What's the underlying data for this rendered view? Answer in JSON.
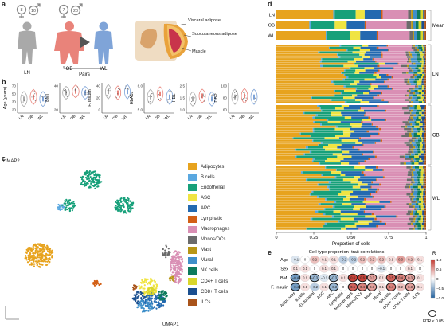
{
  "panels": {
    "a": {
      "letter": "a",
      "groups": [
        {
          "id": "LN",
          "label": "LN",
          "female": "8",
          "male": "10"
        },
        {
          "id": "OB",
          "label": "OB",
          "female": "7",
          "male": "20"
        },
        {
          "id": "WL",
          "label": "WL"
        }
      ],
      "pairs_label": "Pairs",
      "tissue_labels": [
        "Visceral adipose",
        "Subcutaneous adipose",
        "Muscle"
      ],
      "colors": {
        "LN": "#a9a9a9",
        "OB": "#e9837a",
        "WL": "#7fa4d8"
      }
    },
    "b": {
      "letter": "b",
      "plots": [
        {
          "ylabel": "Age (years)",
          "ticks": [
            "70",
            "50",
            "30",
            "20"
          ],
          "xlabels": [
            "LN",
            "OB",
            "WL"
          ]
        },
        {
          "ylabel": "BMI",
          "ticks": [
            "40",
            "20"
          ],
          "xlabels": [
            "LN",
            "OB",
            "WL"
          ]
        },
        {
          "ylabel": "F. insulin",
          "ticks": [
            "40",
            "20",
            "0"
          ],
          "xlabels": [
            "LN",
            "OB",
            "WL"
          ]
        },
        {
          "ylabel": "HbA1c",
          "ticks": [
            "6.0",
            "5.0"
          ],
          "xlabels": [
            "LN",
            "OB",
            "WL"
          ]
        },
        {
          "ylabel": "HDL",
          "ticks": [
            "2.5",
            "1.5",
            "1.0"
          ],
          "xlabels": [
            "LN",
            "OB",
            "WL"
          ]
        },
        {
          "ylabel": "DBP",
          "ticks": [
            "100",
            "80",
            "60"
          ],
          "xlabels": [
            "LN",
            "OB",
            "WL"
          ]
        }
      ]
    },
    "c": {
      "letter": "c",
      "xlabel": "UMAP1",
      "ylabel": "UMAP2",
      "legend": [
        {
          "name": "Adipocytes",
          "color": "#e7a31e"
        },
        {
          "name": "B cells",
          "color": "#5aa8e0"
        },
        {
          "name": "Endothelial",
          "color": "#17a07a"
        },
        {
          "name": "ASC",
          "color": "#f0e442"
        },
        {
          "name": "APC",
          "color": "#2369b0"
        },
        {
          "name": "Lymphatic",
          "color": "#d35f15"
        },
        {
          "name": "Macrophages",
          "color": "#d98fb4"
        },
        {
          "name": "Monos/DCs",
          "color": "#6b6b6b"
        },
        {
          "name": "Mast",
          "color": "#b89615"
        },
        {
          "name": "Mural",
          "color": "#3f8fc9"
        },
        {
          "name": "NK cells",
          "color": "#0d7a5c"
        },
        {
          "name": "CD4+ T cells",
          "color": "#d9d62b"
        },
        {
          "name": "CD8+ T cells",
          "color": "#1b4f8f"
        },
        {
          "name": "ILCs",
          "color": "#a9531a"
        }
      ]
    },
    "d": {
      "letter": "d",
      "xlabel": "Proportion of cells",
      "xticks": [
        "0",
        "0.25",
        "0.50",
        "0.75",
        "1"
      ],
      "mean_label": "Mean",
      "groups": [
        "LN",
        "OB",
        "WL"
      ]
    },
    "e": {
      "letter": "e",
      "title": "Cell type proportion–trait correlations",
      "rows": [
        "Age",
        "Sex",
        "BMI",
        "F. insulin"
      ],
      "columns": [
        "Adipocytes",
        "B cells",
        "Endothelial",
        "ASC",
        "APC",
        "Lymphatic",
        "Macrophages",
        "Monos/DCs",
        "Mast",
        "Mural",
        "NK cells",
        "CD4+ T cells",
        "CD8+ T cells",
        "ILCs"
      ],
      "values": [
        [
          -0.1,
          0,
          0.2,
          0.1,
          0.1,
          -0.2,
          -0.2,
          0.2,
          0.2,
          0.2,
          0.1,
          0.3,
          0.2,
          0.1
        ],
        [
          0.1,
          0.1,
          0,
          0.1,
          0.1,
          0,
          0,
          0,
          0,
          -0.1,
          0,
          0,
          0.1,
          0
        ],
        [
          -0.4,
          0.1,
          -0.3,
          -0.1,
          -0.3,
          0.1,
          0.6,
          0.6,
          0.3,
          0.1,
          0.5,
          0.4,
          0.3,
          0.1
        ],
        [
          -0.4,
          0.1,
          -0.2,
          0.1,
          -0.3,
          0,
          0.5,
          0.4,
          0.3,
          0.1,
          0.4,
          0.2,
          0.3,
          0.1
        ]
      ],
      "significant": [
        [
          false,
          false,
          false,
          false,
          false,
          false,
          false,
          false,
          false,
          false,
          false,
          false,
          false,
          false
        ],
        [
          false,
          false,
          false,
          false,
          false,
          false,
          false,
          false,
          false,
          false,
          false,
          false,
          false,
          false
        ],
        [
          true,
          false,
          true,
          false,
          true,
          false,
          true,
          true,
          true,
          false,
          true,
          true,
          true,
          false
        ],
        [
          true,
          false,
          false,
          false,
          true,
          false,
          true,
          true,
          true,
          false,
          true,
          false,
          true,
          false
        ]
      ],
      "legend_title": "R",
      "legend_ticks": [
        "1.0",
        "0.5",
        "0",
        "−0.5",
        "−1.0"
      ],
      "fdr_label": "FDR < 0.05"
    }
  },
  "chart_data": [
    {
      "type": "bar",
      "panel": "d",
      "stacked": true,
      "orientation": "horizontal",
      "title": "",
      "xlabel": "Proportion of cells",
      "ylabel": "",
      "xlim": [
        0,
        1
      ],
      "categories": [
        "LN",
        "OB",
        "WL"
      ],
      "series": [
        {
          "name": "Adipocytes",
          "values": [
            0.38,
            0.22,
            0.33
          ]
        },
        {
          "name": "B cells",
          "values": [
            0.01,
            0.01,
            0.01
          ]
        },
        {
          "name": "Endothelial",
          "values": [
            0.14,
            0.16,
            0.15
          ]
        },
        {
          "name": "ASC",
          "values": [
            0.06,
            0.08,
            0.07
          ]
        },
        {
          "name": "APC",
          "values": [
            0.11,
            0.12,
            0.11
          ]
        },
        {
          "name": "Lymphatic",
          "values": [
            0.01,
            0.01,
            0.01
          ]
        },
        {
          "name": "Macrophages",
          "values": [
            0.17,
            0.27,
            0.21
          ]
        },
        {
          "name": "Monos/DCs",
          "values": [
            0.02,
            0.03,
            0.02
          ]
        },
        {
          "name": "Mast",
          "values": [
            0.01,
            0.01,
            0.01
          ]
        },
        {
          "name": "Mural",
          "values": [
            0.03,
            0.02,
            0.02
          ]
        },
        {
          "name": "NK cells",
          "values": [
            0.02,
            0.02,
            0.02
          ]
        },
        {
          "name": "CD4+ T cells",
          "values": [
            0.02,
            0.02,
            0.02
          ]
        },
        {
          "name": "CD8+ T cells",
          "values": [
            0.01,
            0.02,
            0.01
          ]
        },
        {
          "name": "ILCs",
          "values": [
            0.01,
            0.01,
            0.01
          ]
        }
      ]
    },
    {
      "type": "heatmap",
      "panel": "e",
      "title": "Cell type proportion–trait correlations",
      "rows": [
        "Age",
        "Sex",
        "BMI",
        "F. insulin"
      ],
      "columns": [
        "Adipocytes",
        "B cells",
        "Endothelial",
        "ASC",
        "APC",
        "Lymphatic",
        "Macrophages",
        "Monos/DCs",
        "Mast",
        "Mural",
        "NK cells",
        "CD4+ T cells",
        "CD8+ T cells",
        "ILCs"
      ],
      "values": [
        [
          -0.1,
          0,
          0.2,
          0.1,
          0.1,
          -0.2,
          -0.2,
          0.2,
          0.2,
          0.2,
          0.1,
          0.3,
          0.2,
          0.1
        ],
        [
          0.1,
          0.1,
          0,
          0.1,
          0.1,
          0,
          0,
          0,
          0,
          -0.1,
          0,
          0,
          0.1,
          0
        ],
        [
          -0.4,
          0.1,
          -0.3,
          -0.1,
          -0.3,
          0.1,
          0.6,
          0.6,
          0.3,
          0.1,
          0.5,
          0.4,
          0.3,
          0.1
        ],
        [
          -0.4,
          0.1,
          -0.2,
          0.1,
          -0.3,
          0,
          0.5,
          0.4,
          0.3,
          0.1,
          0.4,
          0.2,
          0.3,
          0.1
        ]
      ],
      "zlim": [
        -1,
        1
      ]
    }
  ]
}
